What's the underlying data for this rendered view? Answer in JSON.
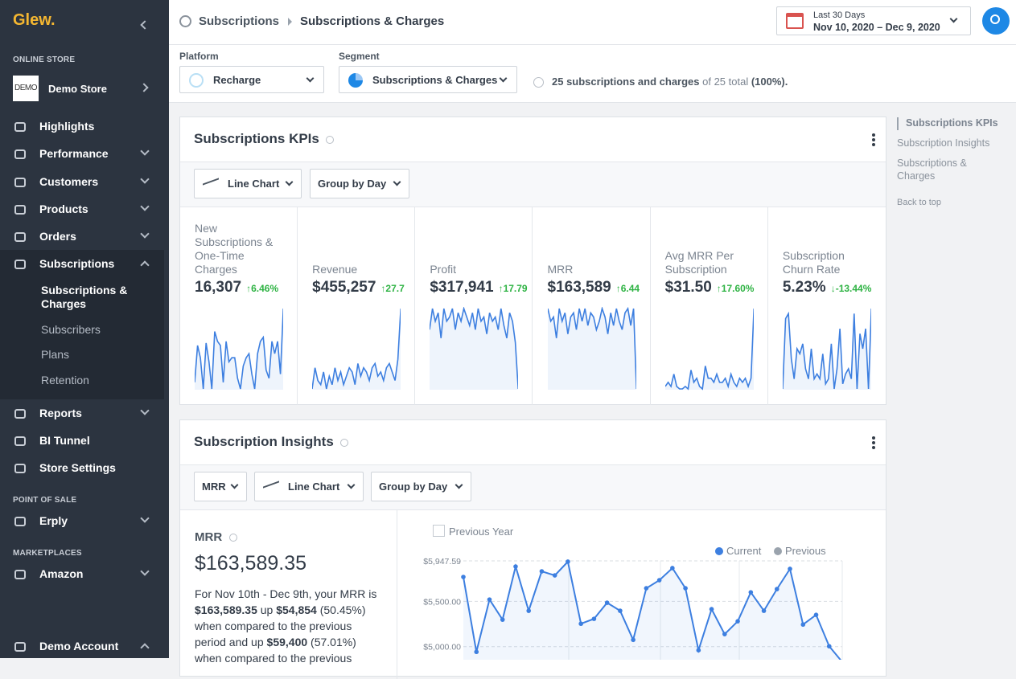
{
  "sidebar": {
    "logo": "Glew.",
    "online_store_heading": "ONLINE STORE",
    "store": {
      "logo": "DEMO",
      "name": "Demo Store"
    },
    "nav": [
      {
        "label": "Highlights"
      },
      {
        "label": "Performance",
        "expand": "down"
      },
      {
        "label": "Customers",
        "expand": "down"
      },
      {
        "label": "Products",
        "expand": "down"
      },
      {
        "label": "Orders",
        "expand": "down"
      },
      {
        "label": "Subscriptions",
        "expand": "up",
        "active": true
      }
    ],
    "subnav": [
      {
        "label": "Subscriptions & Charges",
        "active": true
      },
      {
        "label": "Subscribers"
      },
      {
        "label": "Plans"
      },
      {
        "label": "Retention"
      }
    ],
    "nav2": [
      {
        "label": "Reports",
        "expand": "down"
      },
      {
        "label": "BI Tunnel"
      },
      {
        "label": "Store Settings"
      }
    ],
    "pos": {
      "heading": "POINT OF SALE",
      "items": [
        {
          "label": "Erply",
          "expand": "down"
        }
      ]
    },
    "marketplaces": {
      "heading": "MARKETPLACES",
      "items": [
        {
          "label": "Amazon",
          "expand": "down"
        }
      ]
    },
    "account": {
      "label": "Demo Account",
      "expand": "up"
    }
  },
  "header": {
    "breadcrumb": [
      "Subscriptions",
      "Subscriptions & Charges"
    ],
    "date_range": {
      "label": "Last 30 Days",
      "range": "Nov 10, 2020 – Dec 9, 2020"
    }
  },
  "filters": {
    "platform": {
      "label": "Platform",
      "value": "Recharge"
    },
    "segment": {
      "label": "Segment",
      "value": "Subscriptions & Charges"
    },
    "summary": [
      {
        "text": "25 subscriptions and charges",
        "bold": true
      },
      {
        "text": " of 25 total "
      },
      {
        "text": "(100%).",
        "bold": true
      }
    ]
  },
  "toc": [
    "Subscriptions KPIs",
    "Subscription Insights",
    "Subscriptions & Charges",
    "Back to top"
  ],
  "kpi_card": {
    "title": "Subscriptions KPIs",
    "controls": [
      "Line Chart",
      "Group by Day"
    ],
    "kpis": [
      {
        "label": "New Subscriptions & One-Time Charges",
        "value": "16,307",
        "change": "↑6.46%",
        "spark": [
          10,
          55,
          40,
          2,
          58,
          35,
          2,
          72,
          60,
          55,
          10,
          60,
          35,
          40,
          40,
          15,
          2,
          30,
          40,
          45,
          20,
          2,
          45,
          60,
          65,
          25,
          15,
          60,
          45,
          60,
          20,
          100
        ]
      },
      {
        "label": "Revenue",
        "value": "$455,257",
        "change": "↑27.7",
        "spark": [
          5,
          30,
          15,
          10,
          25,
          5,
          20,
          10,
          30,
          15,
          25,
          10,
          20,
          30,
          25,
          10,
          35,
          20,
          30,
          25,
          15,
          30,
          35,
          20,
          25,
          15,
          30,
          35,
          25,
          15,
          40,
          100
        ]
      },
      {
        "label": "Profit",
        "value": "$317,941",
        "change": "↑17.79",
        "spark": [
          70,
          95,
          80,
          90,
          60,
          95,
          80,
          85,
          95,
          70,
          90,
          80,
          95,
          85,
          75,
          90,
          70,
          95,
          80,
          85,
          65,
          90,
          80,
          85,
          70,
          95,
          75,
          60,
          90,
          80,
          55,
          0
        ]
      },
      {
        "label": "MRR",
        "value": "$163,589",
        "change": "↑6.44",
        "spark": [
          95,
          80,
          85,
          60,
          95,
          80,
          90,
          65,
          85,
          90,
          70,
          95,
          80,
          95,
          75,
          90,
          85,
          70,
          80,
          95,
          85,
          65,
          90,
          75,
          95,
          80,
          70,
          90,
          95,
          75,
          95,
          0
        ]
      },
      {
        "label": "Avg MRR Per Subscription",
        "value": "$31.50",
        "change": "↑17.60%",
        "spark": [
          5,
          10,
          5,
          20,
          5,
          2,
          2,
          5,
          2,
          25,
          10,
          15,
          5,
          2,
          30,
          15,
          15,
          10,
          20,
          10,
          10,
          15,
          5,
          20,
          10,
          5,
          15,
          10,
          15,
          5,
          15,
          100
        ]
      },
      {
        "label": "Subscription Churn Rate",
        "value": "5.23%",
        "change": "↓-13.44%",
        "spark": [
          20,
          90,
          95,
          50,
          30,
          60,
          55,
          65,
          40,
          30,
          60,
          30,
          35,
          30,
          55,
          25,
          30,
          65,
          20,
          40,
          80,
          25,
          35,
          40,
          30,
          95,
          20,
          75,
          60,
          80,
          20,
          100
        ]
      }
    ]
  },
  "insights_card": {
    "title": "Subscription Insights",
    "controls": [
      "MRR",
      "Line Chart",
      "Group by Day"
    ],
    "metric": {
      "label": "MRR",
      "value": "$163,589.35"
    },
    "text": [
      {
        "text": "For Nov 10th - Dec 9th, your MRR is "
      },
      {
        "text": "$163,589.35",
        "bold": true
      },
      {
        "text": " up "
      },
      {
        "text": "$54,854",
        "bold": true
      },
      {
        "text": " (50.45%) when compared to the previous period and up "
      },
      {
        "text": "$59,400",
        "bold": true
      },
      {
        "text": " (57.01%) when compared to the previous"
      }
    ],
    "previous_year_toggle": "Previous Year"
  },
  "chart_data": {
    "type": "line",
    "categories": [
      null,
      null,
      null,
      null,
      null,
      null,
      null,
      null,
      null,
      null,
      null,
      null,
      null,
      null,
      null,
      null,
      null,
      null,
      null,
      null,
      null,
      null,
      null,
      null,
      null,
      null,
      null,
      null,
      null,
      null
    ],
    "series": [
      {
        "name": "Current",
        "color": "#3d7fe0",
        "values": [
          5770,
          4942,
          5520,
          5298,
          5885,
          5396,
          5832,
          5787,
          5939,
          5253,
          5307,
          5485,
          5396,
          5075,
          5645,
          5734,
          5868,
          5645,
          4960,
          5414,
          5138,
          5280,
          5600,
          5396,
          5636,
          5859,
          5244,
          5351,
          5004,
          4830
        ]
      },
      {
        "name": "Previous",
        "color": "#9aa3ad",
        "values": [
          null,
          null,
          null,
          null,
          null,
          null,
          null,
          null,
          null,
          null,
          null,
          null,
          null,
          null,
          null,
          null,
          null,
          null,
          null,
          null,
          null,
          null,
          null,
          null,
          null,
          null,
          null,
          null,
          null,
          null
        ]
      }
    ],
    "ylim": [
      4500,
      5947.59
    ],
    "yticks": [
      {
        "value": 5000,
        "label": "$5,000.00"
      },
      {
        "value": 5500,
        "label": "$5,500.00"
      },
      {
        "value": 5947.59,
        "label": "$5,947.59"
      }
    ],
    "grid": true
  }
}
